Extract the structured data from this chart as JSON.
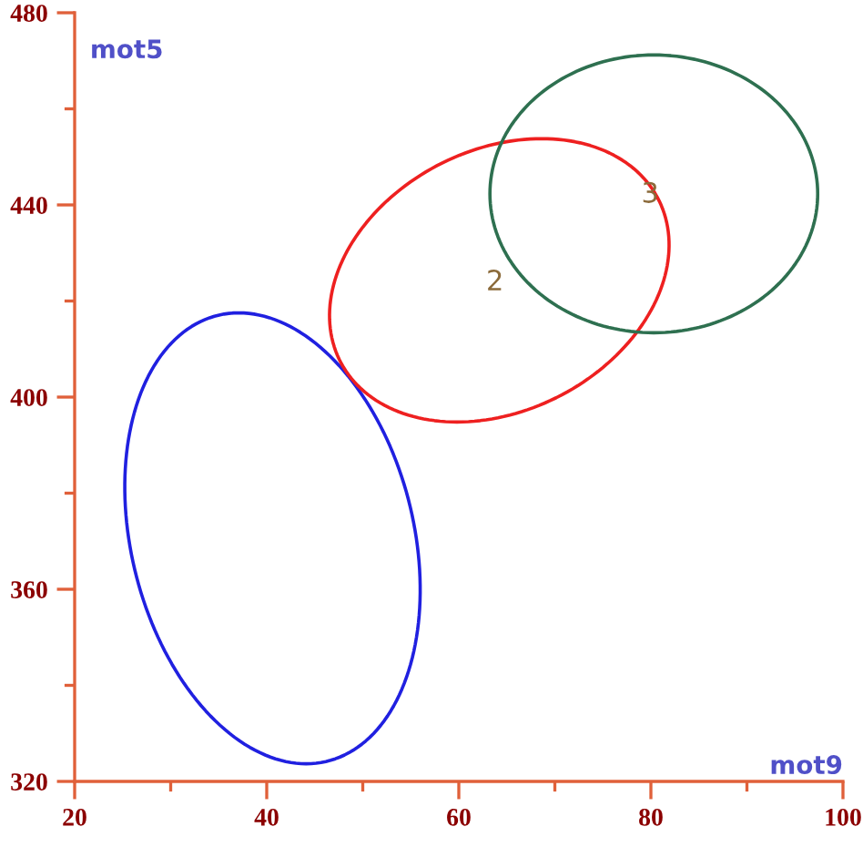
{
  "chart_data": {
    "type": "line",
    "xlabel": "mot9",
    "ylabel": "mot5",
    "xlim": [
      20,
      100
    ],
    "ylim": [
      320,
      480
    ],
    "xticks": [
      20,
      {
        "value": 30,
        "label": null
      },
      40,
      {
        "value": 50,
        "label": null
      },
      60,
      {
        "value": 70,
        "label": null
      },
      80,
      {
        "value": 90,
        "label": null
      },
      100
    ],
    "yticks": [
      320,
      {
        "value": 340,
        "label": null
      },
      360,
      {
        "value": 380,
        "label": null
      },
      400,
      {
        "value": 420,
        "label": null
      },
      440,
      {
        "value": 460,
        "label": null
      },
      480
    ],
    "annotations": [
      "2",
      "3"
    ]
  }
}
